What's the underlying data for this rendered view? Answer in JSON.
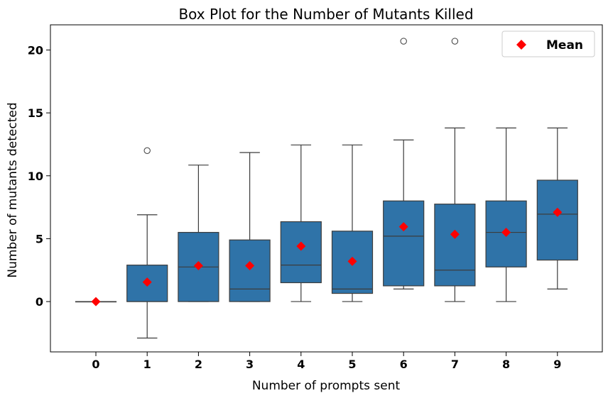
{
  "chart_data": {
    "type": "box",
    "title": "Box Plot for the Number of Mutants Killed",
    "xlabel": "Number of prompts sent",
    "ylabel": "Number of mutants detected",
    "ylim": [
      -4,
      22
    ],
    "yticks": [
      0,
      5,
      10,
      15,
      20
    ],
    "categories": [
      "0",
      "1",
      "2",
      "3",
      "4",
      "5",
      "6",
      "7",
      "8",
      "9"
    ],
    "box_color": "#2f73a8",
    "line_color": "#3c3c3c",
    "mean_color": "#ff0000",
    "legend": {
      "label": "Mean",
      "placement": "top-right"
    },
    "boxes": [
      {
        "category": "0",
        "whisker_low": 0,
        "q1": 0,
        "median": 0,
        "q3": 0,
        "whisker_high": 0,
        "mean": 0,
        "outliers": []
      },
      {
        "category": "1",
        "whisker_low": -2.9,
        "q1": 0,
        "median": 0,
        "q3": 2.9,
        "whisker_high": 6.9,
        "mean": 1.55,
        "outliers": [
          12.0
        ]
      },
      {
        "category": "2",
        "whisker_low": 0,
        "q1": 0,
        "median": 2.75,
        "q3": 5.5,
        "whisker_high": 10.85,
        "mean": 2.85,
        "outliers": []
      },
      {
        "category": "3",
        "whisker_low": 0,
        "q1": 0,
        "median": 1.0,
        "q3": 4.9,
        "whisker_high": 11.85,
        "mean": 2.85,
        "outliers": []
      },
      {
        "category": "4",
        "whisker_low": 0,
        "q1": 1.5,
        "median": 2.9,
        "q3": 6.35,
        "whisker_high": 12.45,
        "mean": 4.4,
        "outliers": []
      },
      {
        "category": "5",
        "whisker_low": 0,
        "q1": 0.65,
        "median": 1.0,
        "q3": 5.6,
        "whisker_high": 12.45,
        "mean": 3.2,
        "outliers": []
      },
      {
        "category": "6",
        "whisker_low": 1.0,
        "q1": 1.25,
        "median": 5.2,
        "q3": 8.0,
        "whisker_high": 12.85,
        "mean": 5.95,
        "outliers": [
          20.7
        ]
      },
      {
        "category": "7",
        "whisker_low": 0,
        "q1": 1.25,
        "median": 2.5,
        "q3": 7.75,
        "whisker_high": 13.8,
        "mean": 5.35,
        "outliers": [
          20.7
        ]
      },
      {
        "category": "8",
        "whisker_low": 0,
        "q1": 2.75,
        "median": 5.5,
        "q3": 8.0,
        "whisker_high": 13.8,
        "mean": 5.5,
        "outliers": []
      },
      {
        "category": "9",
        "whisker_low": 1.0,
        "q1": 3.3,
        "median": 6.95,
        "q3": 9.65,
        "whisker_high": 13.8,
        "mean": 7.1,
        "outliers": []
      }
    ]
  }
}
